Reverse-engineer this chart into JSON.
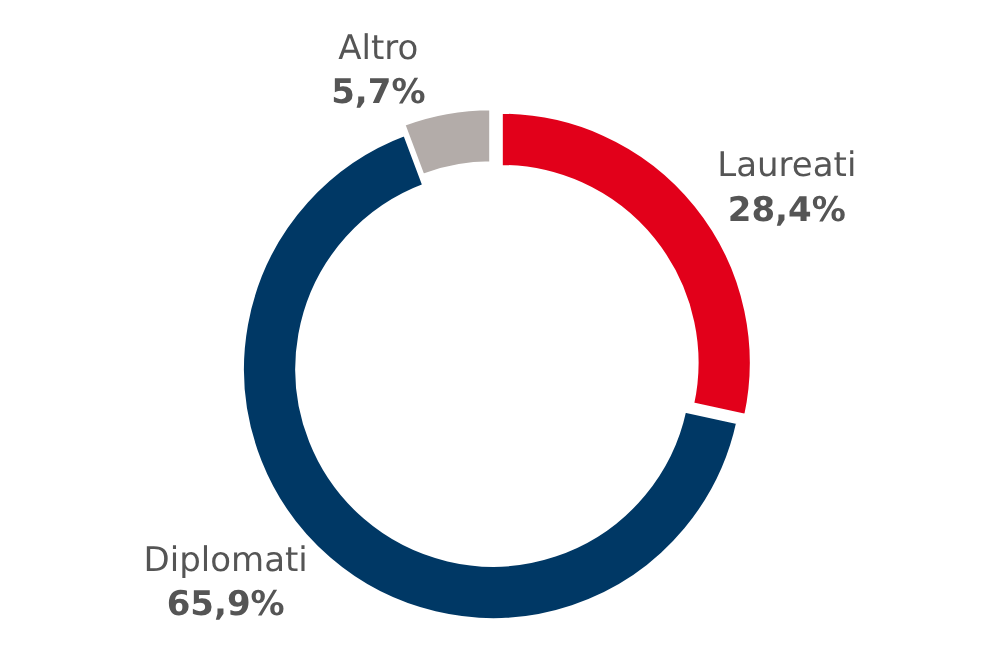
{
  "chart_data": {
    "type": "donut",
    "categories": [
      "Laureati",
      "Diplomati",
      "Altro"
    ],
    "values": [
      28.4,
      65.9,
      5.7
    ],
    "value_labels": [
      "28,4%",
      "65,9%",
      "5,7%"
    ],
    "colors": [
      "#e2001a",
      "#003865",
      "#b3aca9"
    ],
    "legend": false
  }
}
